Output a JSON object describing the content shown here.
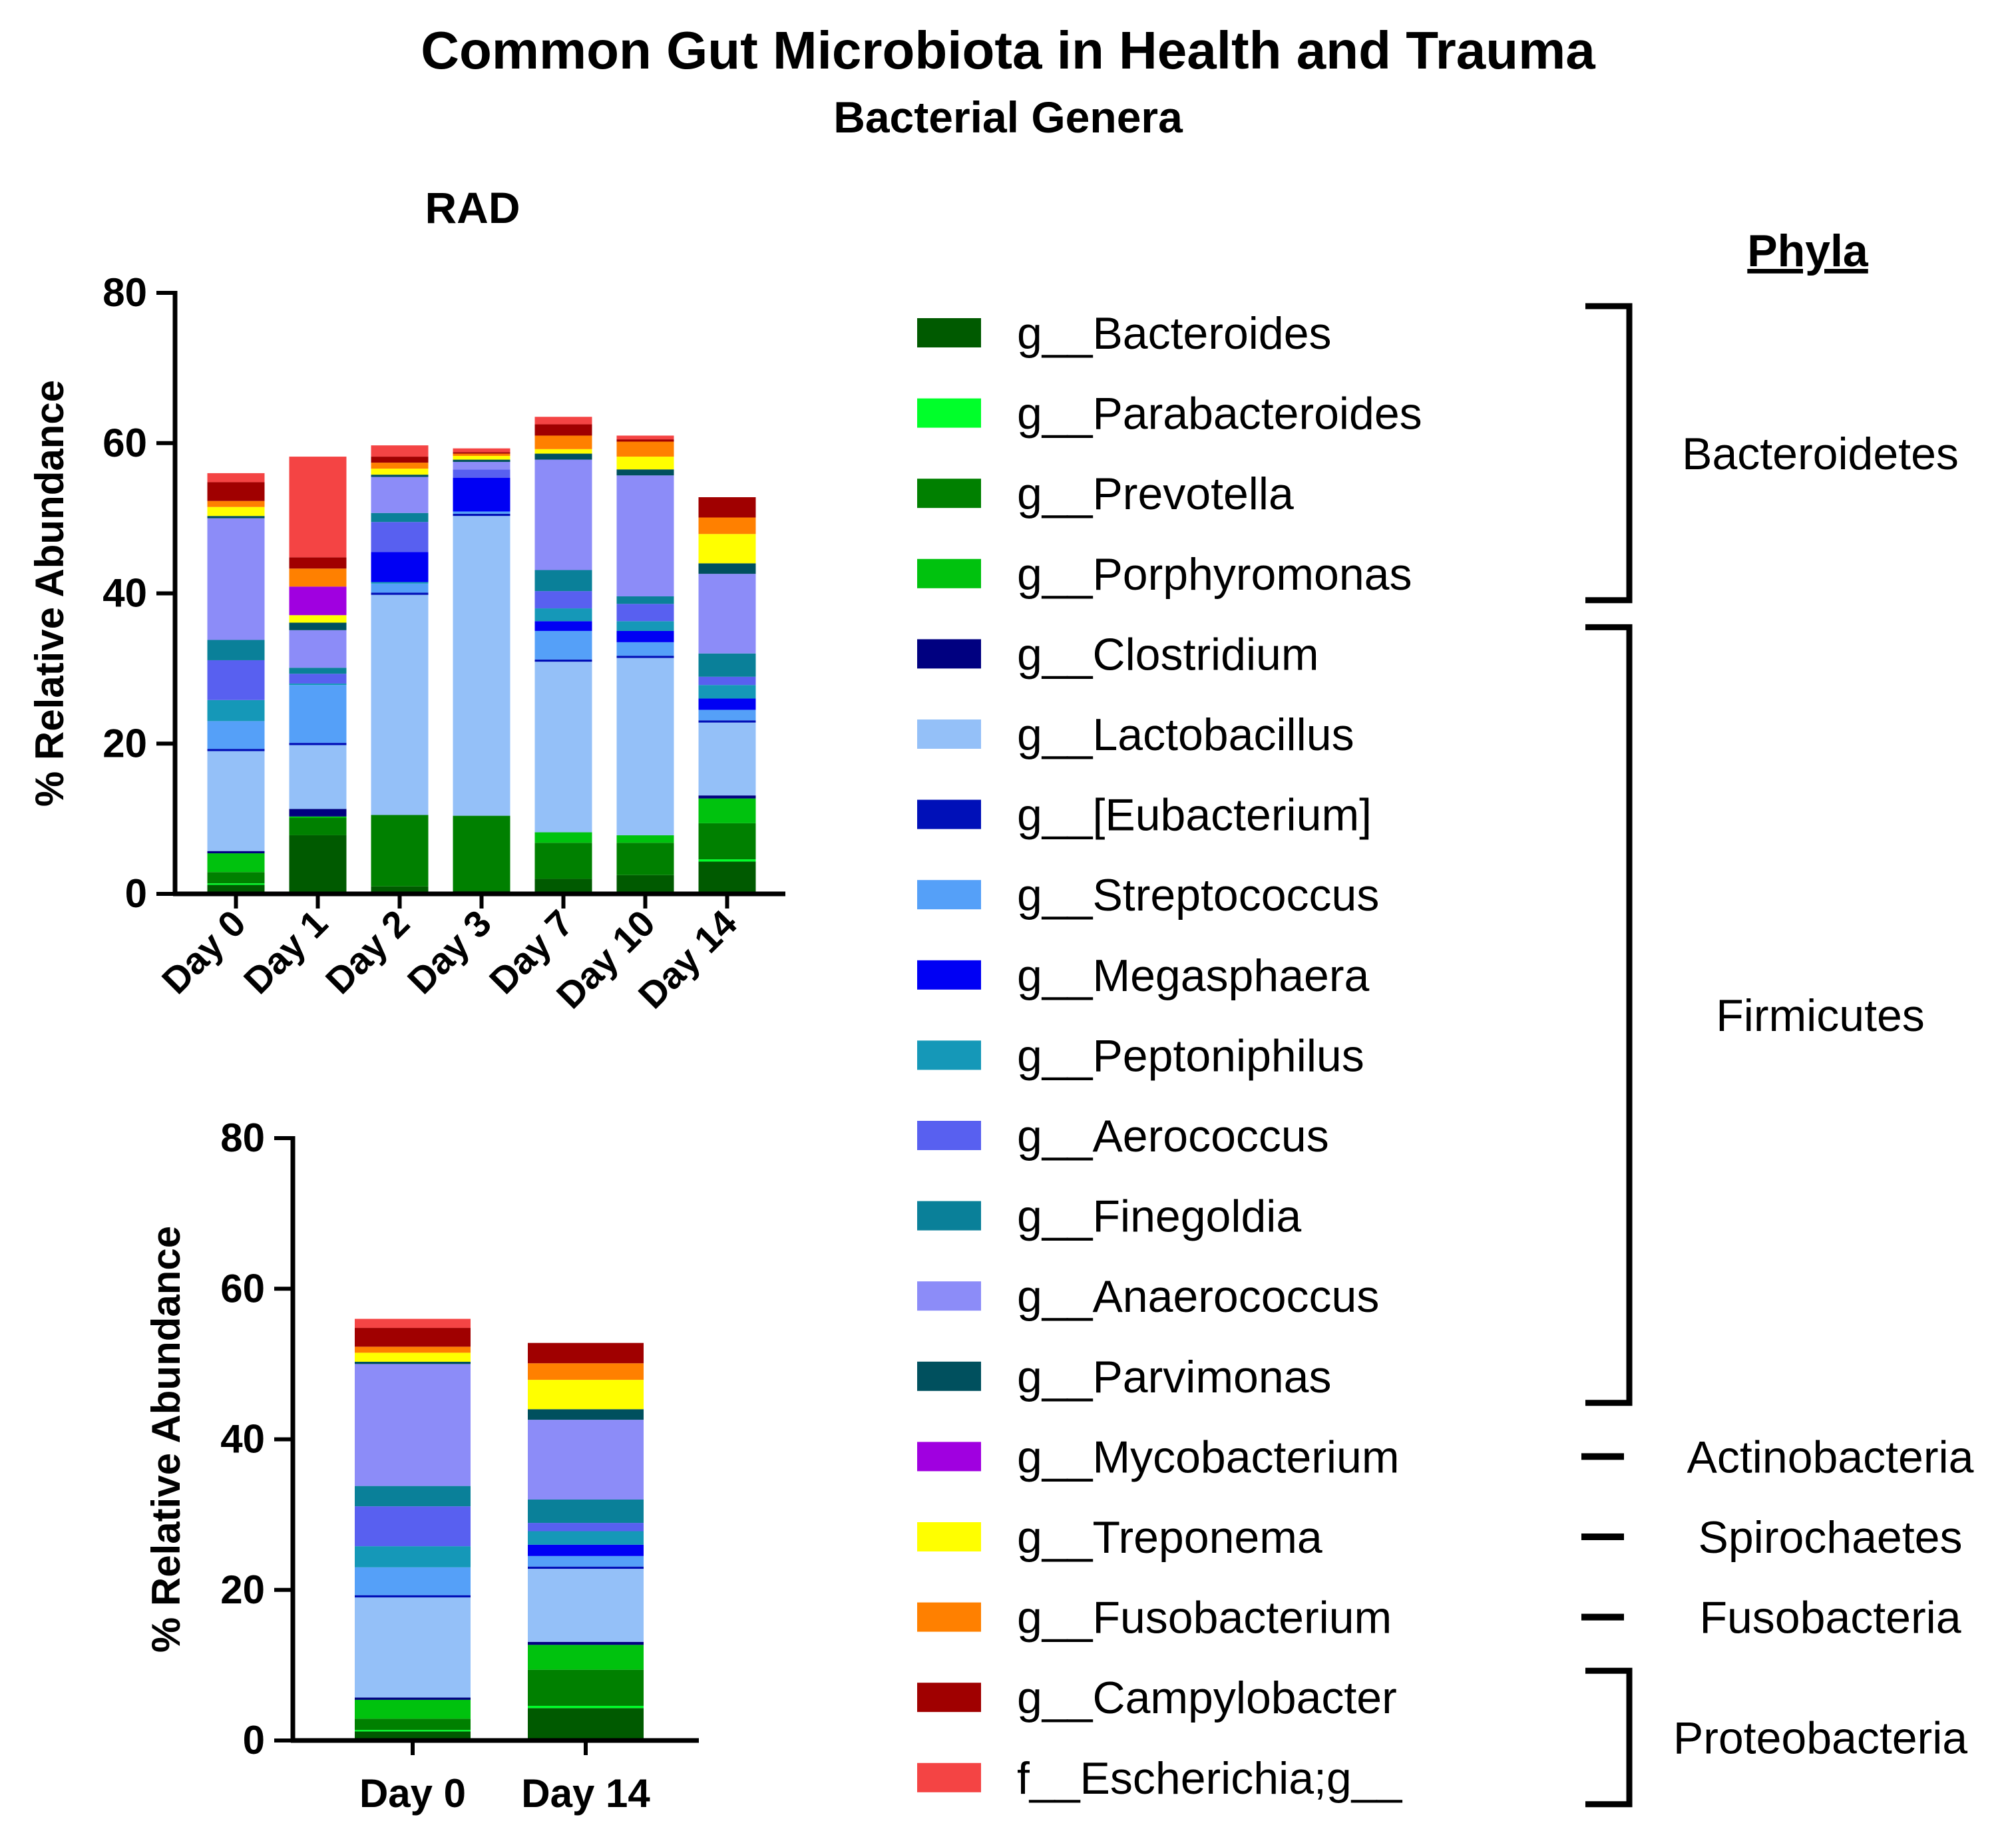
{
  "title": "Common Gut Microbiota in Health and Trauma",
  "subtitle": "Bacterial Genera",
  "phyla_heading": "Phyla",
  "colors": {
    "g__Bacteroides": "#005a00",
    "g__Parabacteroides": "#00ff2a",
    "g__Prevotella": "#008000",
    "g__Porphyromonas": "#00c20e",
    "g__Clostridium": "#000080",
    "g__Lactobacillus": "#94c0f8",
    "g__[Eubacterium]": "#0010b8",
    "g__Streptococcus": "#55a0f8",
    "g__Megasphaera": "#0000f4",
    "g__Peptoniphilus": "#1598b8",
    "g__Aerococcus": "#5860f0",
    "g__Finegoldia": "#0a8099",
    "g__Anaerococcus": "#8c8cf8",
    "g__Parvimonas": "#00505e",
    "g__Mycobacterium": "#a000e0",
    "g__Treponema": "#ffff00",
    "g__Fusobacterium": "#ff8000",
    "g__Campylobacter": "#a00000",
    "f__Escherichia;g__": "#f44444"
  },
  "legend": [
    {
      "label": "g__Bacteroides"
    },
    {
      "label": "g__Parabacteroides"
    },
    {
      "label": "g__Prevotella"
    },
    {
      "label": "g__Porphyromonas"
    },
    {
      "label": "g__Clostridium"
    },
    {
      "label": "g__Lactobacillus"
    },
    {
      "label": "g__[Eubacterium]"
    },
    {
      "label": "g__Streptococcus"
    },
    {
      "label": "g__Megasphaera"
    },
    {
      "label": "g__Peptoniphilus"
    },
    {
      "label": "g__Aerococcus"
    },
    {
      "label": "g__Finegoldia"
    },
    {
      "label": "g__Anaerococcus"
    },
    {
      "label": "g__Parvimonas"
    },
    {
      "label": "g__Mycobacterium"
    },
    {
      "label": "g__Treponema"
    },
    {
      "label": "g__Fusobacterium"
    },
    {
      "label": "g__Campylobacter"
    },
    {
      "label": "f__Escherichia;g__"
    }
  ],
  "phyla": [
    {
      "name": "Bacteroidetes",
      "from": 0,
      "to": 3,
      "mark": "bracket"
    },
    {
      "name": "Firmicutes",
      "from": 4,
      "to": 13,
      "mark": "bracket"
    },
    {
      "name": "Actinobacteria",
      "from": 14,
      "to": 14,
      "mark": "dash"
    },
    {
      "name": "Spirochaetes",
      "from": 15,
      "to": 15,
      "mark": "dash"
    },
    {
      "name": "Fusobacteria",
      "from": 16,
      "to": 16,
      "mark": "dash"
    },
    {
      "name": "Proteobacteria",
      "from": 17,
      "to": 18,
      "mark": "bracket"
    }
  ],
  "chart_data": [
    {
      "type": "bar",
      "stacked": true,
      "title": "RAD",
      "ylabel": "% Relative Abundance",
      "ylim": [
        0,
        80
      ],
      "yticks": [
        0,
        20,
        40,
        60,
        80
      ],
      "categories": [
        "Day 0",
        "Day 1",
        "Day 2",
        "Day 3",
        "Day 7",
        "Day 10",
        "Day 14"
      ],
      "stacks": [
        [
          [
            "g__Bacteroides",
            1.2
          ],
          [
            "g__Parabacteroides",
            0.2
          ],
          [
            "g__Prevotella",
            1.5
          ],
          [
            "g__Porphyromonas",
            2.5
          ],
          [
            "g__Clostridium",
            0.3
          ],
          [
            "g__Lactobacillus",
            13.3
          ],
          [
            "g__[Eubacterium]",
            0.3
          ],
          [
            "g__Streptococcus",
            3.7
          ],
          [
            "g__Peptoniphilus",
            2.8
          ],
          [
            "g__Aerococcus",
            5.3
          ],
          [
            "g__Finegoldia",
            2.7
          ],
          [
            "g__Anaerococcus",
            16.2
          ],
          [
            "g__Parvimonas",
            0.3
          ],
          [
            "g__Treponema",
            1.2
          ],
          [
            "g__Fusobacterium",
            0.8
          ],
          [
            "g__Campylobacter",
            2.5
          ],
          [
            "f__Escherichia;g__",
            1.2
          ]
        ],
        [
          [
            "g__Bacteroides",
            7.8
          ],
          [
            "g__Prevotella",
            2.3
          ],
          [
            "g__Porphyromonas",
            0.2
          ],
          [
            "g__Clostridium",
            1.0
          ],
          [
            "g__Lactobacillus",
            8.5
          ],
          [
            "g__[Eubacterium]",
            0.3
          ],
          [
            "g__Streptococcus",
            7.7
          ],
          [
            "g__Peptoniphilus",
            0.2
          ],
          [
            "g__Aerococcus",
            1.3
          ],
          [
            "g__Finegoldia",
            0.8
          ],
          [
            "g__Anaerococcus",
            5.0
          ],
          [
            "g__Parvimonas",
            1.0
          ],
          [
            "g__Treponema",
            1.0
          ],
          [
            "g__Mycobacterium",
            3.8
          ],
          [
            "g__Fusobacterium",
            2.4
          ],
          [
            "g__Campylobacter",
            1.5
          ],
          [
            "f__Escherichia;g__",
            13.4
          ]
        ],
        [
          [
            "g__Bacteroides",
            1.0
          ],
          [
            "g__Prevotella",
            9.5
          ],
          [
            "g__Lactobacillus",
            29.3
          ],
          [
            "g__[Eubacterium]",
            0.3
          ],
          [
            "g__Streptococcus",
            1.2
          ],
          [
            "g__Peptoniphilus",
            0.2
          ],
          [
            "g__Megasphaera",
            4.0
          ],
          [
            "g__Aerococcus",
            4.0
          ],
          [
            "g__Finegoldia",
            1.2
          ],
          [
            "g__Anaerococcus",
            4.8
          ],
          [
            "g__Parvimonas",
            0.3
          ],
          [
            "g__Treponema",
            0.8
          ],
          [
            "g__Fusobacterium",
            0.8
          ],
          [
            "g__Campylobacter",
            0.8
          ],
          [
            "f__Escherichia;g__",
            1.5
          ]
        ],
        [
          [
            "g__Bacteroides",
            0.4
          ],
          [
            "g__Prevotella",
            10.0
          ],
          [
            "g__Lactobacillus",
            39.9
          ],
          [
            "g__[Eubacterium]",
            0.3
          ],
          [
            "g__Streptococcus",
            0.3
          ],
          [
            "g__Megasphaera",
            4.5
          ],
          [
            "g__Aerococcus",
            1.1
          ],
          [
            "g__Anaerococcus",
            1.0
          ],
          [
            "g__Parvimonas",
            0.3
          ],
          [
            "g__Treponema",
            0.5
          ],
          [
            "g__Fusobacterium",
            0.3
          ],
          [
            "g__Campylobacter",
            0.2
          ],
          [
            "f__Escherichia;g__",
            0.5
          ]
        ],
        [
          [
            "g__Bacteroides",
            2.0
          ],
          [
            "g__Prevotella",
            4.8
          ],
          [
            "g__Porphyromonas",
            1.4
          ],
          [
            "g__Lactobacillus",
            22.7
          ],
          [
            "g__[Eubacterium]",
            0.3
          ],
          [
            "g__Streptococcus",
            3.8
          ],
          [
            "g__Megasphaera",
            1.3
          ],
          [
            "g__Peptoniphilus",
            1.7
          ],
          [
            "g__Aerococcus",
            2.3
          ],
          [
            "g__Finegoldia",
            2.8
          ],
          [
            "g__Anaerococcus",
            14.7
          ],
          [
            "g__Parvimonas",
            0.8
          ],
          [
            "g__Treponema",
            0.6
          ],
          [
            "g__Fusobacterium",
            1.8
          ],
          [
            "g__Campylobacter",
            1.5
          ],
          [
            "f__Escherichia;g__",
            1.0
          ]
        ],
        [
          [
            "g__Bacteroides",
            2.5
          ],
          [
            "g__Prevotella",
            4.3
          ],
          [
            "g__Porphyromonas",
            1.0
          ],
          [
            "g__Lactobacillus",
            23.6
          ],
          [
            "g__[Eubacterium]",
            0.3
          ],
          [
            "g__Streptococcus",
            1.8
          ],
          [
            "g__Megasphaera",
            1.5
          ],
          [
            "g__Peptoniphilus",
            1.3
          ],
          [
            "g__Aerococcus",
            2.3
          ],
          [
            "g__Finegoldia",
            1.0
          ],
          [
            "g__Anaerococcus",
            16.1
          ],
          [
            "g__Parvimonas",
            0.8
          ],
          [
            "g__Treponema",
            1.7
          ],
          [
            "g__Fusobacterium",
            2.0
          ],
          [
            "g__Campylobacter",
            0.3
          ],
          [
            "f__Escherichia;g__",
            0.5
          ]
        ],
        [
          [
            "g__Bacteroides",
            4.3
          ],
          [
            "g__Parabacteroides",
            0.3
          ],
          [
            "g__Prevotella",
            4.8
          ],
          [
            "g__Porphyromonas",
            3.3
          ],
          [
            "g__Clostridium",
            0.4
          ],
          [
            "g__Lactobacillus",
            9.7
          ],
          [
            "g__[Eubacterium]",
            0.3
          ],
          [
            "g__Streptococcus",
            1.4
          ],
          [
            "g__Megasphaera",
            1.5
          ],
          [
            "g__Peptoniphilus",
            1.8
          ],
          [
            "g__Aerococcus",
            1.1
          ],
          [
            "g__Finegoldia",
            3.1
          ],
          [
            "g__Anaerococcus",
            10.6
          ],
          [
            "g__Parvimonas",
            1.4
          ],
          [
            "g__Treponema",
            3.9
          ],
          [
            "g__Fusobacterium",
            2.2
          ],
          [
            "g__Campylobacter",
            2.7
          ]
        ]
      ]
    },
    {
      "type": "bar",
      "stacked": true,
      "title": "",
      "ylabel": "% Relative Abundance",
      "ylim": [
        0,
        80
      ],
      "yticks": [
        0,
        20,
        40,
        60,
        80
      ],
      "categories": [
        "Day 0",
        "Day 14"
      ],
      "stacks": [
        [
          [
            "g__Bacteroides",
            1.2
          ],
          [
            "g__Parabacteroides",
            0.2
          ],
          [
            "g__Prevotella",
            1.5
          ],
          [
            "g__Porphyromonas",
            2.5
          ],
          [
            "g__Clostridium",
            0.3
          ],
          [
            "g__Lactobacillus",
            13.3
          ],
          [
            "g__[Eubacterium]",
            0.3
          ],
          [
            "g__Streptococcus",
            3.7
          ],
          [
            "g__Peptoniphilus",
            2.8
          ],
          [
            "g__Aerococcus",
            5.3
          ],
          [
            "g__Finegoldia",
            2.7
          ],
          [
            "g__Anaerococcus",
            16.2
          ],
          [
            "g__Parvimonas",
            0.3
          ],
          [
            "g__Treponema",
            1.2
          ],
          [
            "g__Fusobacterium",
            0.8
          ],
          [
            "g__Campylobacter",
            2.5
          ],
          [
            "f__Escherichia;g__",
            1.2
          ]
        ],
        [
          [
            "g__Bacteroides",
            4.3
          ],
          [
            "g__Parabacteroides",
            0.3
          ],
          [
            "g__Prevotella",
            4.8
          ],
          [
            "g__Porphyromonas",
            3.3
          ],
          [
            "g__Clostridium",
            0.4
          ],
          [
            "g__Lactobacillus",
            9.7
          ],
          [
            "g__[Eubacterium]",
            0.3
          ],
          [
            "g__Streptococcus",
            1.4
          ],
          [
            "g__Megasphaera",
            1.5
          ],
          [
            "g__Peptoniphilus",
            1.8
          ],
          [
            "g__Aerococcus",
            1.1
          ],
          [
            "g__Finegoldia",
            3.1
          ],
          [
            "g__Anaerococcus",
            10.6
          ],
          [
            "g__Parvimonas",
            1.4
          ],
          [
            "g__Treponema",
            3.9
          ],
          [
            "g__Fusobacterium",
            2.2
          ],
          [
            "g__Campylobacter",
            2.7
          ]
        ]
      ]
    }
  ]
}
